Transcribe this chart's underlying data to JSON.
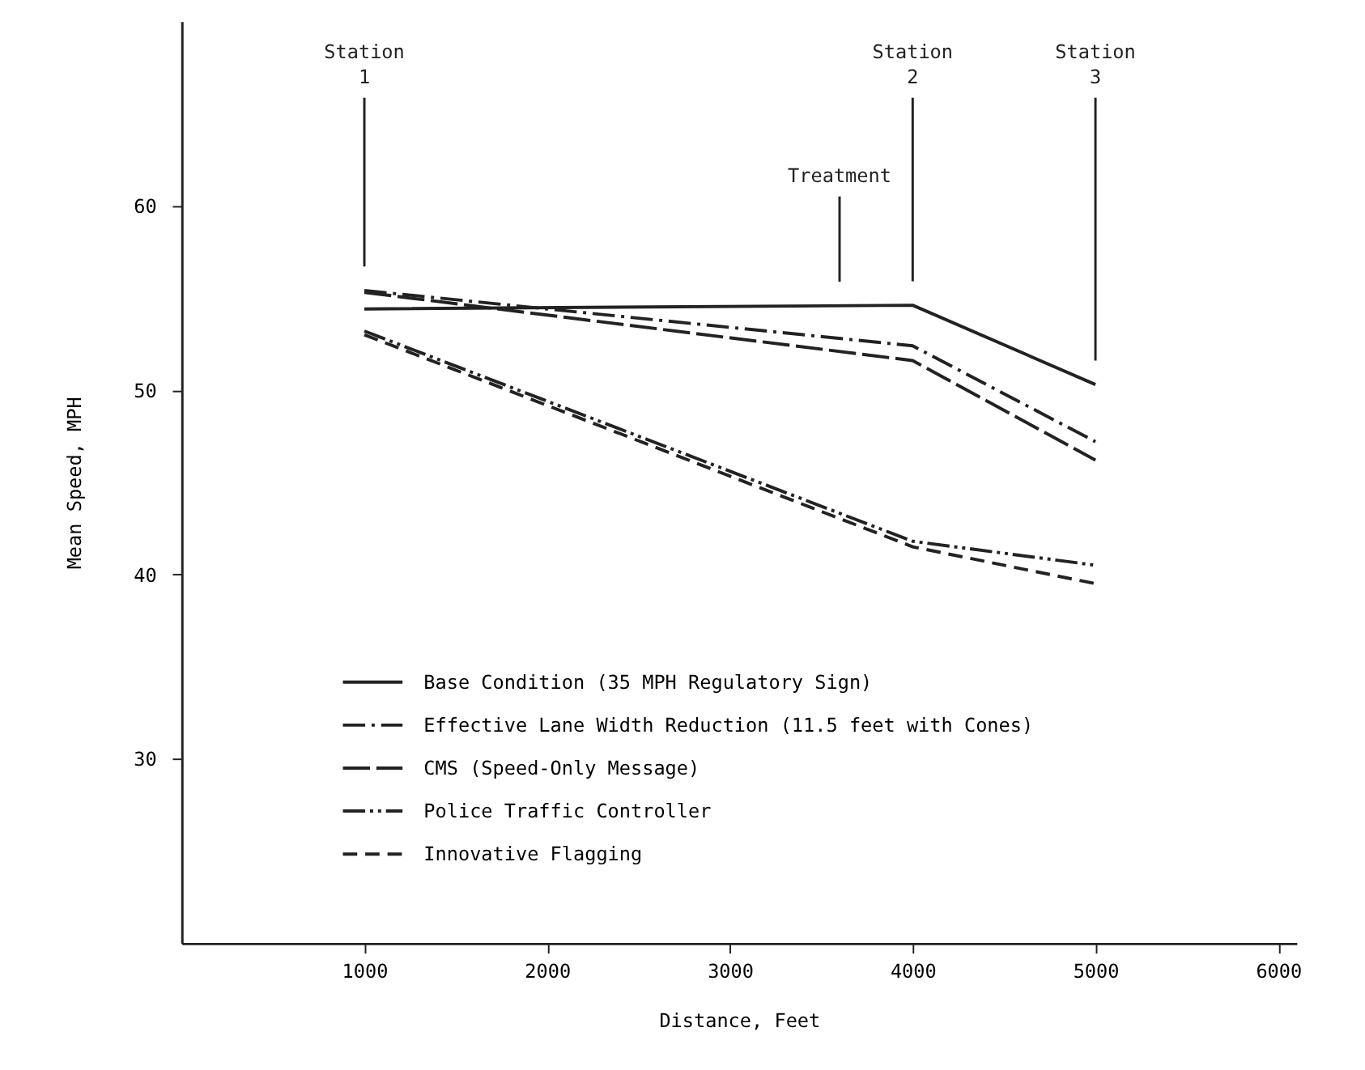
{
  "chart_data": {
    "type": "line",
    "xlabel": "Distance, Feet",
    "ylabel": "Mean Speed, MPH",
    "x": [
      1000,
      4000,
      5000
    ],
    "xlim": [
      0,
      6100
    ],
    "xticks": [
      1000,
      2000,
      3000,
      4000,
      5000,
      6000
    ],
    "ylim": [
      20,
      70
    ],
    "yticks": [
      30,
      40,
      50,
      60
    ],
    "grid": false,
    "legend": "bottom left",
    "marker": "none",
    "series": [
      {
        "name": "Base Condition (35 MPH Regulatory Sign)",
        "color": "#222222",
        "line_style": "solid",
        "values": [
          54.4,
          54.6,
          50.3
        ]
      },
      {
        "name": "Effective Lane Width Reduction (11.5 feet with Cones)",
        "color": "#222222",
        "line_style": "dashdot",
        "values": [
          55.4,
          52.4,
          47.2
        ]
      },
      {
        "name": "CMS (Speed-Only Message)",
        "color": "#222222",
        "line_style": "longdash",
        "values": [
          55.3,
          51.6,
          46.2
        ]
      },
      {
        "name": "Police Traffic Controller",
        "color": "#222222",
        "line_style": "dashdotdot",
        "values": [
          53.2,
          41.8,
          40.5
        ]
      },
      {
        "name": "Innovative Flagging",
        "color": "#222222",
        "line_style": "dashed",
        "values": [
          53.0,
          41.5,
          39.5
        ]
      }
    ],
    "ref_lines": [
      {
        "axis": "x",
        "value": 1000,
        "label": "Station\n1"
      },
      {
        "axis": "x",
        "value": 3600,
        "label": "Treatment"
      },
      {
        "axis": "x",
        "value": 4000,
        "label": "Station\n2"
      },
      {
        "axis": "x",
        "value": 5000,
        "label": "Station\n3"
      }
    ]
  }
}
